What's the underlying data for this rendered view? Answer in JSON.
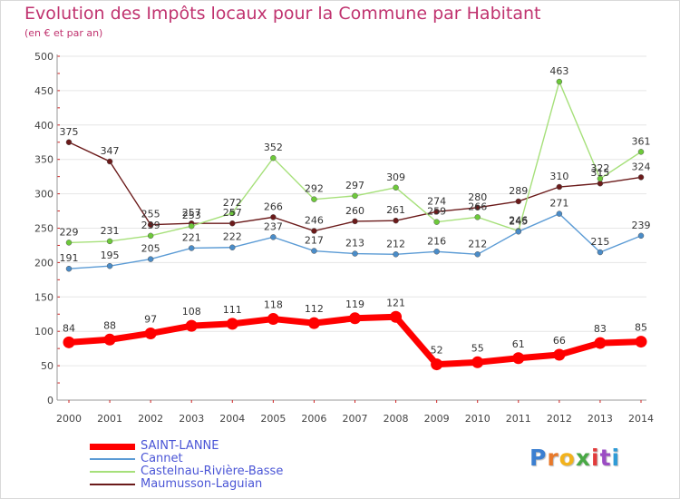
{
  "header": {
    "title": "Evolution des Impôts locaux pour la Commune par Habitant",
    "subtitle": "(en € et par an)"
  },
  "logo": {
    "text": "Proxiti",
    "colors": [
      "#3b7fd1",
      "#e8792a",
      "#f2b21c",
      "#49a845",
      "#e23b3b",
      "#9b4cc4",
      "#2e9bd6"
    ]
  },
  "chart_data": {
    "type": "line",
    "x": [
      2000,
      2001,
      2002,
      2003,
      2004,
      2005,
      2006,
      2007,
      2008,
      2009,
      2010,
      2011,
      2012,
      2013,
      2014
    ],
    "ylim": [
      0,
      500
    ],
    "yticks": [
      0,
      50,
      100,
      150,
      200,
      250,
      300,
      350,
      400,
      450,
      500
    ],
    "grid": "horizontal",
    "legend_position": "bottom-left",
    "series": [
      {
        "name": "Maumusson-Laguian",
        "color": "#6b1a1a",
        "values": [
          375,
          347,
          255,
          257,
          257,
          266,
          246,
          260,
          261,
          274,
          280,
          289,
          310,
          315,
          324
        ]
      },
      {
        "name": "Castelnau-Rivière-Basse",
        "color": "#a6e07a",
        "point_color": "#6dc93a",
        "values": [
          229,
          231,
          239,
          253,
          272,
          352,
          292,
          297,
          309,
          259,
          266,
          246,
          463,
          322,
          361
        ]
      },
      {
        "name": "Cannet",
        "color": "#5b9bd5",
        "point_color": "#4a8cc8",
        "values": [
          191,
          195,
          205,
          221,
          222,
          237,
          217,
          213,
          212,
          216,
          212,
          245,
          271,
          215,
          239
        ]
      },
      {
        "name": "SAINT-LANNE",
        "color": "#ff0000",
        "values": [
          84,
          88,
          97,
          108,
          111,
          118,
          112,
          119,
          121,
          52,
          55,
          61,
          66,
          83,
          85
        ]
      }
    ],
    "legend_order": [
      "SAINT-LANNE",
      "Cannet",
      "Castelnau-Rivière-Basse",
      "Maumusson-Laguian"
    ]
  }
}
